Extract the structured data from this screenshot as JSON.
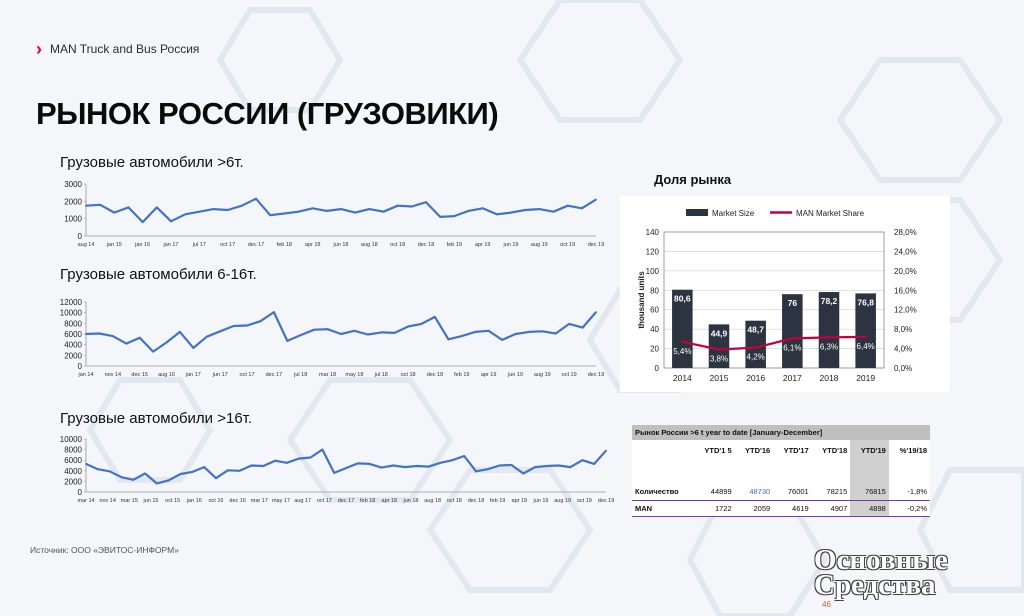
{
  "brand": {
    "name": "MAN Truck and Bus Россия"
  },
  "page_title": "РЫНОК РОССИИ (ГРУЗОВИКИ)",
  "source": "Источник: ООО «ЭВИТОС-ИНФОРМ»",
  "page_number": "46",
  "watermark": "Основные Средства",
  "colors": {
    "line": "#4472c4",
    "bar": "#2b3440",
    "share": "#c5003e",
    "accent": "#e4002b"
  },
  "chart_data": [
    {
      "type": "line",
      "title": "Грузовые автомобили >6т.",
      "ylim": [
        0,
        3000
      ],
      "yticks": [
        0,
        1000,
        2000,
        3000
      ],
      "x_tick_labels": [
        "aug 14",
        "jan 15",
        "jan 16",
        "jan 17",
        "jul 17",
        "oct 17",
        "dec 17",
        "feb 18",
        "apr 18",
        "jun 18",
        "aug 18",
        "oct 18",
        "dec 18",
        "feb 19",
        "apr 19",
        "jun 19",
        "aug 19",
        "oct 19",
        "dec 19"
      ],
      "values": [
        1750,
        1800,
        1350,
        1650,
        800,
        1650,
        850,
        1250,
        1400,
        1550,
        1500,
        1750,
        2150,
        1200,
        1300,
        1400,
        1600,
        1450,
        1550,
        1350,
        1550,
        1400,
        1750,
        1700,
        1950,
        1100,
        1150,
        1450,
        1600,
        1250,
        1350,
        1500,
        1550,
        1400,
        1750,
        1600,
        2100
      ]
    },
    {
      "type": "line",
      "title": "Грузовые автомобили 6-16т.",
      "ylim": [
        0,
        12000
      ],
      "yticks": [
        0,
        2000,
        4000,
        6000,
        8000,
        10000,
        12000
      ],
      "x_tick_labels": [
        "jan 14",
        "nov 14",
        "dec 15",
        "aug 16",
        "jan 17",
        "jun 17",
        "oct 17",
        "dec 17",
        "jul 18",
        "mar 18",
        "may 18",
        "jul 18",
        "oct 18",
        "dec 18",
        "feb 19",
        "apr 19",
        "jun 19",
        "aug 19",
        "oct 19",
        "dec 19"
      ],
      "values": [
        6000,
        6100,
        5600,
        4200,
        5300,
        2700,
        4400,
        6400,
        3400,
        5500,
        6500,
        7500,
        7600,
        8400,
        10100,
        4700,
        5800,
        6800,
        6900,
        6000,
        6600,
        5900,
        6300,
        6200,
        7400,
        7900,
        9200,
        5000,
        5600,
        6400,
        6600,
        4900,
        6000,
        6400,
        6500,
        6100,
        7900,
        7200,
        10100
      ]
    },
    {
      "type": "line",
      "title": "Грузовые автомобили >16т.",
      "ylim": [
        0,
        10000
      ],
      "yticks": [
        0,
        2000,
        4000,
        6000,
        8000,
        10000
      ],
      "x_tick_labels": [
        "mar 14",
        "nov 14",
        "mar 15",
        "jun 15",
        "oct 15",
        "jan 16",
        "oct 16",
        "dec 16",
        "mar 17",
        "may 17",
        "aug 17",
        "oct 17",
        "dec 17",
        "feb 18",
        "apr 18",
        "jun 18",
        "aug 18",
        "oct 18",
        "dec 18",
        "feb 19",
        "apr 19",
        "jun 19",
        "aug 19",
        "oct 19",
        "dec 19"
      ],
      "values": [
        5300,
        4300,
        3900,
        2800,
        2300,
        3500,
        1600,
        2200,
        3400,
        3800,
        4700,
        2600,
        4100,
        4000,
        5000,
        4900,
        5900,
        5500,
        6300,
        6500,
        8000,
        3600,
        4500,
        5400,
        5300,
        4600,
        5000,
        4700,
        4900,
        4800,
        5500,
        6000,
        6800,
        3900,
        4300,
        5000,
        5100,
        3500,
        4700,
        4900,
        5000,
        4700,
        6000,
        5300,
        7800
      ]
    },
    {
      "type": "bar",
      "title": "Доля рынка",
      "ylabel": "thousand units",
      "legend": [
        "Market Size",
        "MAN Market Share"
      ],
      "legend_position": "top",
      "categories": [
        "2014",
        "2015",
        "2016",
        "2017",
        "2018",
        "2019"
      ],
      "series": [
        {
          "name": "Market Size",
          "values": [
            80.6,
            44.9,
            48.7,
            76,
            78.2,
            76.8
          ],
          "labels": [
            "80,6",
            "44,9",
            "48,7",
            "76",
            "78,2",
            "76,8"
          ]
        },
        {
          "name": "MAN Market Share",
          "values": [
            5.4,
            3.8,
            4.2,
            6.1,
            6.3,
            6.4
          ],
          "labels": [
            "5,4%",
            "3,8%",
            "4,2%",
            "6,1%",
            "6,3%",
            "6,4%"
          ]
        }
      ],
      "ylim": [
        0,
        140
      ],
      "yticks": [
        0,
        20,
        40,
        60,
        80,
        100,
        120,
        140
      ],
      "y2lim": [
        0,
        28
      ],
      "y2ticks": [
        "0,0%",
        "4,0%",
        "8,0%",
        "12,0%",
        "16,0%",
        "20,0%",
        "24,0%",
        "28,0%"
      ],
      "grid": true
    }
  ],
  "ytd_table": {
    "title": "Рынок России >6 t year to date [January-December]",
    "headers": [
      "",
      "YTD'1 5",
      "YTD'16",
      "YTD'17",
      "YTD'18",
      "YTD'19",
      "%'19/18"
    ],
    "rows": [
      [
        "Количество",
        "44899",
        "48730",
        "76001",
        "78215",
        "76815",
        "-1,8%"
      ],
      [
        "MAN",
        "1722",
        "2059",
        "4619",
        "4907",
        "4898",
        "-0,2%"
      ]
    ]
  }
}
